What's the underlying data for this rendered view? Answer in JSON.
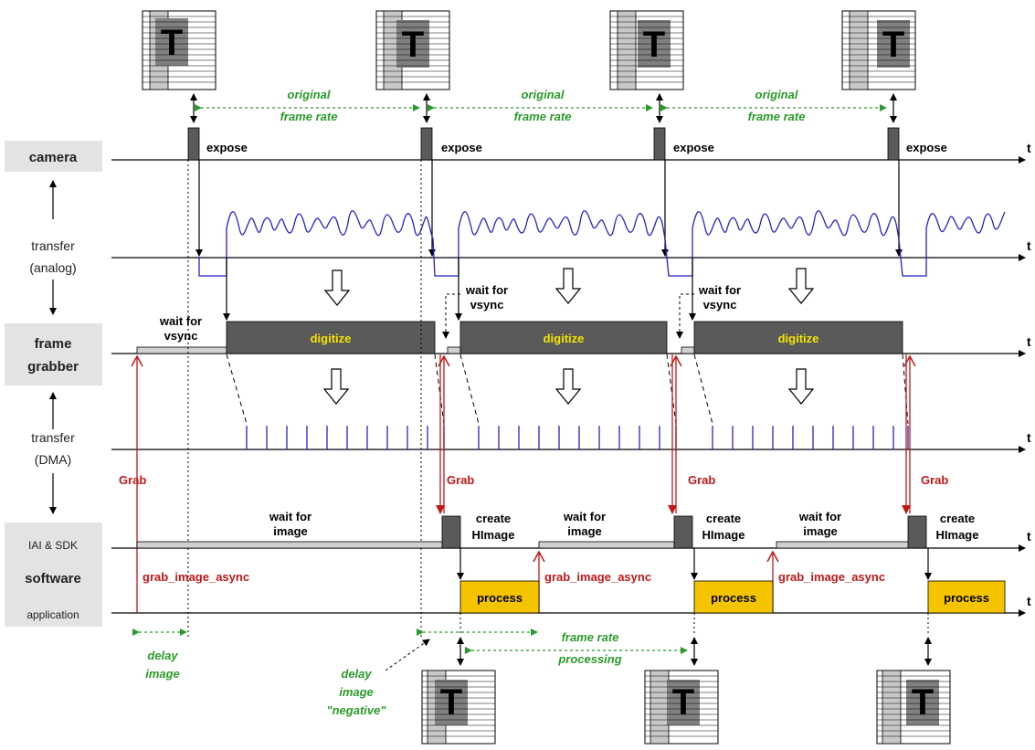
{
  "rows": {
    "camera": "camera",
    "transfer_analog": [
      "transfer",
      "(analog)"
    ],
    "frame_grabber": [
      "frame",
      "grabber"
    ],
    "transfer_dma": [
      "transfer",
      "(DMA)"
    ],
    "iai_sdk": "IAI & SDK",
    "software": "software",
    "application": "application"
  },
  "axis_label": "t",
  "labels": {
    "expose": "expose",
    "original_frame_rate": [
      "original",
      "frame rate"
    ],
    "wait_for_vsync": [
      "wait for",
      "vsync"
    ],
    "digitize": "digitize",
    "grab": "Grab",
    "wait_for_image": [
      "wait for",
      "image"
    ],
    "create_himage": [
      "create",
      "HImage"
    ],
    "grab_image_async": "grab_image_async",
    "process": "process",
    "delay_image": [
      "delay",
      "image"
    ],
    "delay_image_negative": [
      "delay",
      "image",
      "\"negative\""
    ],
    "frame_rate_processing": [
      "frame rate",
      "processing"
    ]
  },
  "frame_icon_glyph": "T",
  "colors": {
    "digitize_block": "#5a5a5a",
    "process_block": "#f5c400",
    "signal": "#2222cc",
    "grab_arrow": "#c01818",
    "annotation": "#2a9a2a",
    "row_label_bg": "#e3e3e3"
  }
}
